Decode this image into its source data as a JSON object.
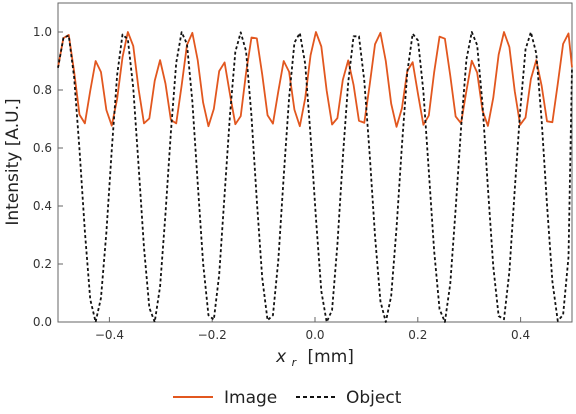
{
  "chart_data": {
    "type": "line",
    "title": "",
    "xlabel_main": "x",
    "xlabel_sub": "r",
    "xlabel_unit": "[mm]",
    "ylabel": "Intensity [A.U.]",
    "xlim": [
      -0.5,
      0.5
    ],
    "ylim": [
      0.0,
      1.1
    ],
    "x_ticks": [
      -0.4,
      -0.2,
      0.0,
      0.2,
      0.4
    ],
    "x_tick_labels": [
      "−0.4",
      "−0.2",
      "0.0",
      "0.2",
      "0.4"
    ],
    "y_ticks": [
      0.0,
      0.2,
      0.4,
      0.6,
      0.8,
      1.0
    ],
    "y_tick_labels": [
      "0.0",
      "0.2",
      "0.4",
      "0.6",
      "0.8",
      "1.0"
    ],
    "grid": false,
    "legend_position": "bottom",
    "series": [
      {
        "name": "Image",
        "color": "#E2571F",
        "style": "solid",
        "x": [
          -0.5,
          -0.4895,
          -0.4791,
          -0.4686,
          -0.4582,
          -0.4477,
          -0.4373,
          -0.4268,
          -0.4164,
          -0.4059,
          -0.3954,
          -0.385,
          -0.3745,
          -0.3641,
          -0.3536,
          -0.3432,
          -0.3327,
          -0.3223,
          -0.3118,
          -0.3014,
          -0.2909,
          -0.2804,
          -0.27,
          -0.2595,
          -0.2491,
          -0.2386,
          -0.2282,
          -0.2177,
          -0.2073,
          -0.1968,
          -0.1864,
          -0.1759,
          -0.1654,
          -0.155,
          -0.1445,
          -0.1341,
          -0.1236,
          -0.1132,
          -0.1027,
          -0.0923,
          -0.0818,
          -0.0714,
          -0.0609,
          -0.0504,
          -0.04,
          -0.0295,
          -0.0191,
          -0.0086,
          0.0018,
          0.0123,
          0.0227,
          0.0332,
          0.0436,
          0.0541,
          0.0646,
          0.075,
          0.0855,
          0.0959,
          0.1064,
          0.1168,
          0.1273,
          0.1377,
          0.1482,
          0.1586,
          0.1691,
          0.1796,
          0.19,
          0.2005,
          0.2109,
          0.2214,
          0.2318,
          0.2423,
          0.2527,
          0.2632,
          0.2736,
          0.2841,
          0.2946,
          0.305,
          0.3155,
          0.3259,
          0.3364,
          0.3468,
          0.3573,
          0.3677,
          0.3782,
          0.3886,
          0.3991,
          0.4096,
          0.42,
          0.4305,
          0.4409,
          0.4514,
          0.4618,
          0.4723,
          0.4827,
          0.4932,
          0.5
        ],
        "y": [
          0.878,
          0.979,
          0.99,
          0.863,
          0.715,
          0.685,
          0.797,
          0.9,
          0.862,
          0.731,
          0.677,
          0.769,
          0.913,
          1.0,
          0.952,
          0.803,
          0.685,
          0.702,
          0.832,
          0.903,
          0.822,
          0.697,
          0.685,
          0.815,
          0.955,
          0.997,
          0.903,
          0.757,
          0.675,
          0.735,
          0.865,
          0.895,
          0.785,
          0.682,
          0.71,
          0.859,
          0.981,
          0.978,
          0.854,
          0.713,
          0.684,
          0.795,
          0.9,
          0.863,
          0.732,
          0.675,
          0.771,
          0.92,
          1.0,
          0.95,
          0.798,
          0.681,
          0.703,
          0.835,
          0.902,
          0.818,
          0.694,
          0.687,
          0.818,
          0.958,
          0.997,
          0.9,
          0.753,
          0.673,
          0.737,
          0.866,
          0.896,
          0.785,
          0.68,
          0.712,
          0.861,
          0.984,
          0.977,
          0.849,
          0.709,
          0.685,
          0.797,
          0.901,
          0.86,
          0.729,
          0.676,
          0.773,
          0.922,
          1.0,
          0.948,
          0.796,
          0.68,
          0.705,
          0.838,
          0.903,
          0.815,
          0.692,
          0.689,
          0.821,
          0.959,
          0.995,
          0.878
        ]
      },
      {
        "name": "Object",
        "color": "#111111",
        "style": "dashed",
        "x": [
          -0.5,
          -0.4895,
          -0.4791,
          -0.4686,
          -0.4582,
          -0.4477,
          -0.4373,
          -0.4268,
          -0.4164,
          -0.4059,
          -0.3954,
          -0.385,
          -0.3745,
          -0.3641,
          -0.3536,
          -0.3432,
          -0.3327,
          -0.3223,
          -0.3118,
          -0.3014,
          -0.2909,
          -0.2804,
          -0.27,
          -0.2595,
          -0.2491,
          -0.2386,
          -0.2282,
          -0.2177,
          -0.2073,
          -0.1968,
          -0.1864,
          -0.1759,
          -0.1654,
          -0.155,
          -0.1445,
          -0.1341,
          -0.1236,
          -0.1132,
          -0.1027,
          -0.0923,
          -0.0818,
          -0.0714,
          -0.0609,
          -0.0504,
          -0.04,
          -0.0295,
          -0.0191,
          -0.0086,
          0.0018,
          0.0123,
          0.0227,
          0.0332,
          0.0436,
          0.0541,
          0.0646,
          0.075,
          0.0855,
          0.0959,
          0.1064,
          0.1168,
          0.1273,
          0.1377,
          0.1482,
          0.1586,
          0.1691,
          0.1796,
          0.19,
          0.2005,
          0.2109,
          0.2214,
          0.2318,
          0.2423,
          0.2527,
          0.2632,
          0.2736,
          0.2841,
          0.2946,
          0.305,
          0.3155,
          0.3259,
          0.3364,
          0.3468,
          0.3573,
          0.3677,
          0.3782,
          0.3886,
          0.3991,
          0.4096,
          0.42,
          0.4305,
          0.4409,
          0.4514,
          0.4618,
          0.4723,
          0.4827,
          0.4932,
          0.5
        ],
        "y": [
          0.8764,
          0.9796,
          0.9878,
          0.8436,
          0.5946,
          0.3118,
          0.0784,
          0.0,
          0.0828,
          0.3086,
          0.5935,
          0.8509,
          0.9914,
          0.9747,
          0.8071,
          0.5375,
          0.2567,
          0.0489,
          0.0,
          0.1222,
          0.3737,
          0.6535,
          0.8936,
          0.9996,
          0.9587,
          0.76,
          0.4788,
          0.2028,
          0.0234,
          0.0079,
          0.1634,
          0.4397,
          0.7143,
          0.9315,
          0.9986,
          0.9337,
          0.7104,
          0.4187,
          0.1523,
          0.006,
          0.0234,
          0.2124,
          0.5019,
          0.772,
          0.9633,
          0.9966,
          0.8903,
          0.6407,
          0.3589,
          0.1064,
          0.0,
          0.0408,
          0.2672,
          0.566,
          0.8256,
          0.9851,
          0.9852,
          0.8323,
          0.5773,
          0.2957,
          0.0715,
          0.0,
          0.0895,
          0.3237,
          0.6086,
          0.8616,
          0.9939,
          0.9704,
          0.7942,
          0.5207,
          0.2452,
          0.0444,
          0.0,
          0.1326,
          0.3888,
          0.6674,
          0.9052,
          0.9999,
          0.9547,
          0.7512,
          0.4624,
          0.1918,
          0.0204,
          0.0094,
          0.174,
          0.4558,
          0.7261,
          0.9402,
          0.9994,
          0.9263,
          0.6962,
          0.4037,
          0.1403,
          0.0039,
          0.0247,
          0.2238,
          0.8764
        ]
      }
    ]
  }
}
